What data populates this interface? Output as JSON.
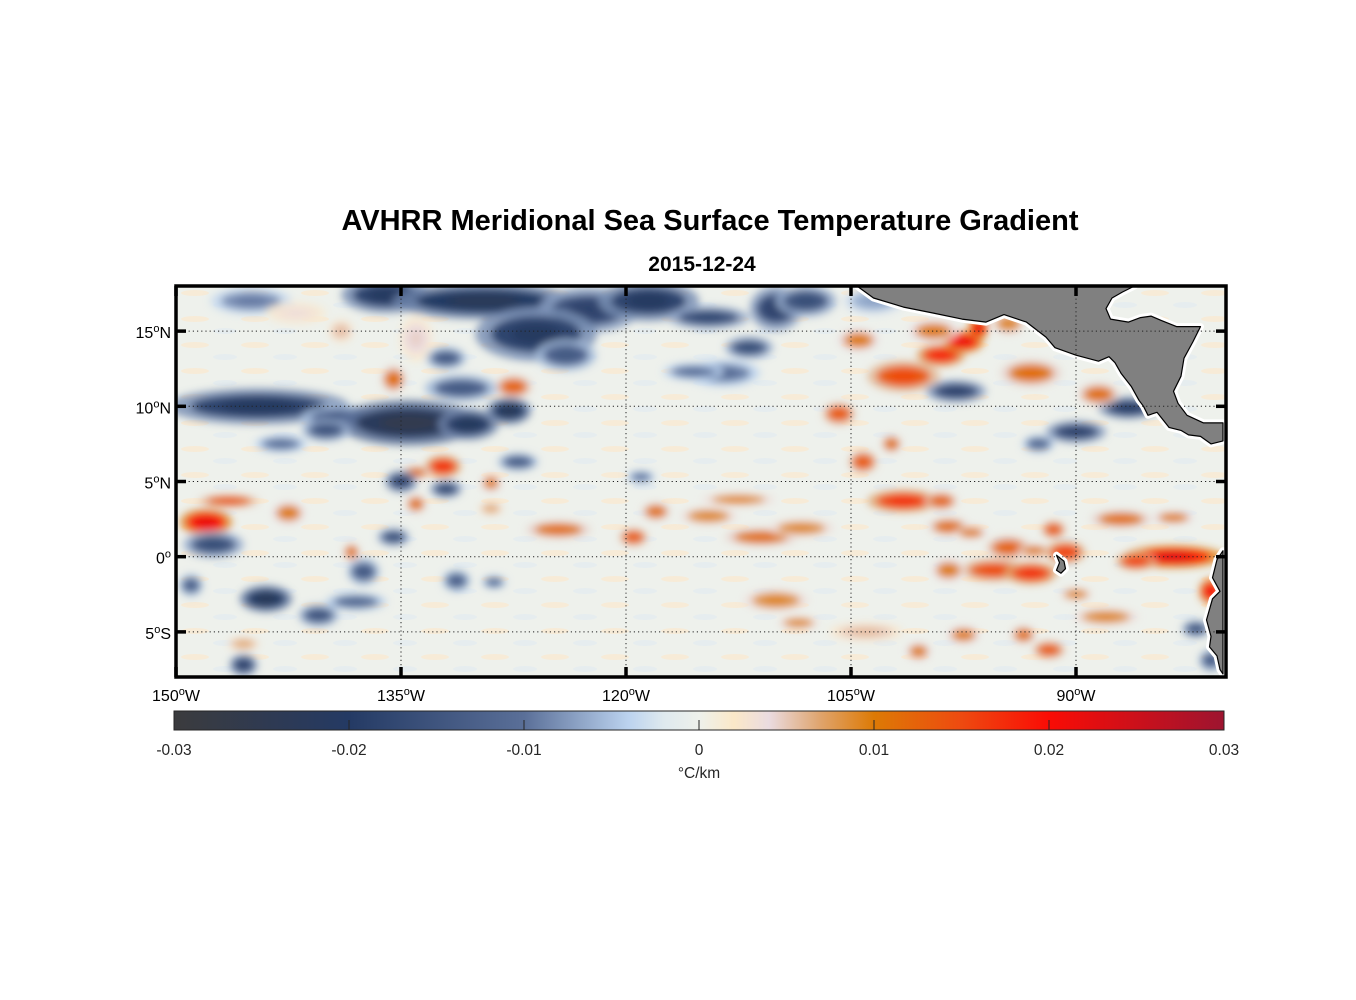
{
  "figure": {
    "title": "AVHRR Meridional Sea Surface Temperature Gradient",
    "subtitle": "2015-12-24"
  },
  "chart_data": {
    "type": "heatmap",
    "title": "AVHRR Meridional Sea Surface Temperature Gradient",
    "subtitle": "2015-12-24",
    "projection": "equirectangular",
    "lon_range": [
      -150,
      -80
    ],
    "lat_range": [
      -8,
      18
    ],
    "grid": true,
    "lon_ticks": [
      {
        "value": -150,
        "label": "150",
        "suffix": "W"
      },
      {
        "value": -135,
        "label": "135",
        "suffix": "W"
      },
      {
        "value": -120,
        "label": "120",
        "suffix": "W"
      },
      {
        "value": -105,
        "label": "105",
        "suffix": "W"
      },
      {
        "value": -90,
        "label": "90",
        "suffix": "W"
      }
    ],
    "lat_ticks": [
      {
        "value": 15,
        "label": "15",
        "suffix": "N"
      },
      {
        "value": 10,
        "label": "10",
        "suffix": "N"
      },
      {
        "value": 5,
        "label": "5",
        "suffix": "N"
      },
      {
        "value": 0,
        "label": "0",
        "suffix": ""
      },
      {
        "value": -5,
        "label": "5",
        "suffix": "S"
      }
    ],
    "colorbar": {
      "range": [
        -0.03,
        0.03
      ],
      "ticks": [
        {
          "value": -0.03,
          "label": "-0.03"
        },
        {
          "value": -0.02,
          "label": "-0.02"
        },
        {
          "value": -0.01,
          "label": "-0.01"
        },
        {
          "value": 0,
          "label": "0"
        },
        {
          "value": 0.01,
          "label": "0.01"
        },
        {
          "value": 0.02,
          "label": "0.02"
        },
        {
          "value": 0.03,
          "label": "0.03"
        }
      ],
      "units": "°C/km",
      "stops": [
        {
          "value": -0.03,
          "color": "#3b3b3d"
        },
        {
          "value": -0.02,
          "color": "#243a64"
        },
        {
          "value": -0.01,
          "color": "#5a6f98"
        },
        {
          "value": -0.004,
          "color": "#bcd3ef"
        },
        {
          "value": -0.002,
          "color": "#dfe9ee"
        },
        {
          "value": 0,
          "color": "#eef1ec"
        },
        {
          "value": 0.002,
          "color": "#fbe8c8"
        },
        {
          "value": 0.004,
          "color": "#eadbe0"
        },
        {
          "value": 0.007,
          "color": "#dfa36a"
        },
        {
          "value": 0.01,
          "color": "#dd7a05"
        },
        {
          "value": 0.015,
          "color": "#ee4a10"
        },
        {
          "value": 0.02,
          "color": "#fa0c05"
        },
        {
          "value": 0.03,
          "color": "#9d1430"
        }
      ]
    },
    "background_value": 0.0005,
    "land_color": "#808080",
    "features": [
      {
        "lon": -145.0,
        "lat": 17.0,
        "rlon": 2.0,
        "rlat": 0.6,
        "value": -0.008
      },
      {
        "lon": -142.0,
        "lat": 16.2,
        "rlon": 1.5,
        "rlat": 0.5,
        "value": 0.003
      },
      {
        "lon": -136.0,
        "lat": 17.4,
        "rlon": 2.2,
        "rlat": 0.8,
        "value": -0.018
      },
      {
        "lon": -129.5,
        "lat": 17.0,
        "rlon": 4.5,
        "rlat": 0.8,
        "value": -0.02
      },
      {
        "lon": -122.5,
        "lat": 16.4,
        "rlon": 2.5,
        "rlat": 1.0,
        "value": -0.016
      },
      {
        "lon": -118.5,
        "lat": 17.0,
        "rlon": 2.5,
        "rlat": 0.9,
        "value": -0.018
      },
      {
        "lon": -114.5,
        "lat": 15.9,
        "rlon": 2.0,
        "rlat": 0.5,
        "value": -0.015
      },
      {
        "lon": -110.0,
        "lat": 16.5,
        "rlon": 1.3,
        "rlat": 1.0,
        "value": -0.016
      },
      {
        "lon": -108.0,
        "lat": 17.0,
        "rlon": 1.5,
        "rlat": 0.7,
        "value": -0.014
      },
      {
        "lon": -126.0,
        "lat": 14.8,
        "rlon": 3.0,
        "rlat": 1.2,
        "value": -0.018
      },
      {
        "lon": -124.0,
        "lat": 13.4,
        "rlon": 1.5,
        "rlat": 0.7,
        "value": -0.012
      },
      {
        "lon": -111.8,
        "lat": 13.9,
        "rlon": 1.2,
        "rlat": 0.5,
        "value": -0.014
      },
      {
        "lon": -113.5,
        "lat": 12.2,
        "rlon": 1.8,
        "rlat": 0.6,
        "value": -0.009
      },
      {
        "lon": -139.0,
        "lat": 15.0,
        "rlon": 0.6,
        "rlat": 0.5,
        "value": 0.005
      },
      {
        "lon": -134.0,
        "lat": 14.5,
        "rlon": 0.8,
        "rlat": 1.0,
        "value": 0.004
      },
      {
        "lon": -135.5,
        "lat": 11.8,
        "rlon": 0.6,
        "rlat": 0.6,
        "value": 0.01
      },
      {
        "lon": -127.5,
        "lat": 11.3,
        "rlon": 0.9,
        "rlat": 0.5,
        "value": 0.011
      },
      {
        "lon": -127.8,
        "lat": 9.7,
        "rlon": 1.1,
        "rlat": 0.6,
        "value": -0.02
      },
      {
        "lon": -131.0,
        "lat": 11.2,
        "rlon": 1.8,
        "rlat": 0.6,
        "value": -0.012
      },
      {
        "lon": -132.0,
        "lat": 13.2,
        "rlon": 1.0,
        "rlat": 0.5,
        "value": -0.012
      },
      {
        "lon": -144.5,
        "lat": 10.0,
        "rlon": 4.5,
        "rlat": 0.8,
        "value": -0.018
      },
      {
        "lon": -139.0,
        "lat": 9.2,
        "rlon": 2.0,
        "rlat": 0.6,
        "value": -0.012
      },
      {
        "lon": -134.5,
        "lat": 8.9,
        "rlon": 3.5,
        "rlat": 1.0,
        "value": -0.022
      },
      {
        "lon": -130.5,
        "lat": 8.8,
        "rlon": 1.5,
        "rlat": 0.7,
        "value": -0.019
      },
      {
        "lon": -140.0,
        "lat": 8.4,
        "rlon": 1.2,
        "rlat": 0.5,
        "value": -0.013
      },
      {
        "lon": -143.0,
        "lat": 7.5,
        "rlon": 1.3,
        "rlat": 0.4,
        "value": -0.009
      },
      {
        "lon": -132.2,
        "lat": 6.0,
        "rlon": 0.9,
        "rlat": 0.5,
        "value": 0.015
      },
      {
        "lon": -134.0,
        "lat": 5.6,
        "rlon": 0.7,
        "rlat": 0.3,
        "value": 0.01
      },
      {
        "lon": -135.0,
        "lat": 5.0,
        "rlon": 0.8,
        "rlat": 0.5,
        "value": -0.016
      },
      {
        "lon": -132.0,
        "lat": 4.5,
        "rlon": 0.8,
        "rlat": 0.4,
        "value": -0.015
      },
      {
        "lon": -129.0,
        "lat": 4.9,
        "rlon": 0.5,
        "rlat": 0.4,
        "value": 0.009
      },
      {
        "lon": -127.2,
        "lat": 6.3,
        "rlon": 1.0,
        "rlat": 0.4,
        "value": -0.012
      },
      {
        "lon": -134.0,
        "lat": 3.5,
        "rlon": 0.5,
        "rlat": 0.4,
        "value": 0.01
      },
      {
        "lon": -129.0,
        "lat": 3.2,
        "rlon": 0.6,
        "rlat": 0.3,
        "value": 0.006
      },
      {
        "lon": -124.5,
        "lat": 1.8,
        "rlon": 1.6,
        "rlat": 0.4,
        "value": 0.01
      },
      {
        "lon": -119.5,
        "lat": 1.3,
        "rlon": 0.7,
        "rlat": 0.4,
        "value": 0.012
      },
      {
        "lon": -118.0,
        "lat": 3.0,
        "rlon": 0.7,
        "rlat": 0.4,
        "value": 0.01
      },
      {
        "lon": -114.5,
        "lat": 2.7,
        "rlon": 1.4,
        "rlat": 0.4,
        "value": 0.008
      },
      {
        "lon": -112.5,
        "lat": 3.8,
        "rlon": 1.8,
        "rlat": 0.3,
        "value": 0.008
      },
      {
        "lon": -111.0,
        "lat": 1.3,
        "rlon": 1.8,
        "rlat": 0.4,
        "value": 0.01
      },
      {
        "lon": -108.3,
        "lat": 1.9,
        "rlon": 1.6,
        "rlat": 0.4,
        "value": 0.008
      },
      {
        "lon": -110.0,
        "lat": -2.9,
        "rlon": 1.6,
        "rlat": 0.5,
        "value": 0.008
      },
      {
        "lon": -108.5,
        "lat": -4.4,
        "rlon": 1.0,
        "rlat": 0.3,
        "value": 0.008
      },
      {
        "lon": -131.3,
        "lat": -1.6,
        "rlon": 0.7,
        "rlat": 0.5,
        "value": -0.011
      },
      {
        "lon": -128.8,
        "lat": -1.7,
        "rlon": 0.6,
        "rlat": 0.3,
        "value": -0.01
      },
      {
        "lon": -148.0,
        "lat": 2.3,
        "rlon": 1.3,
        "rlat": 0.6,
        "value": 0.019
      },
      {
        "lon": -146.5,
        "lat": 3.7,
        "rlon": 1.5,
        "rlat": 0.3,
        "value": 0.012
      },
      {
        "lon": -142.5,
        "lat": 2.9,
        "rlon": 0.8,
        "rlat": 0.5,
        "value": 0.009
      },
      {
        "lon": -138.3,
        "lat": 0.3,
        "rlon": 0.4,
        "rlat": 0.4,
        "value": 0.01
      },
      {
        "lon": -147.5,
        "lat": 0.8,
        "rlon": 1.5,
        "rlat": 0.6,
        "value": -0.014
      },
      {
        "lon": -144.0,
        "lat": -2.8,
        "rlon": 1.3,
        "rlat": 0.6,
        "value": -0.02
      },
      {
        "lon": -140.5,
        "lat": -3.9,
        "rlon": 1.0,
        "rlat": 0.5,
        "value": -0.013
      },
      {
        "lon": -138.0,
        "lat": -3.0,
        "rlon": 1.5,
        "rlat": 0.4,
        "value": -0.01
      },
      {
        "lon": -137.5,
        "lat": -1.0,
        "rlon": 0.8,
        "rlat": 0.6,
        "value": -0.012
      },
      {
        "lon": -135.5,
        "lat": 1.3,
        "rlon": 0.8,
        "rlat": 0.4,
        "value": -0.014
      },
      {
        "lon": -149.0,
        "lat": -1.9,
        "rlon": 0.6,
        "rlat": 0.5,
        "value": -0.011
      },
      {
        "lon": -145.5,
        "lat": -7.2,
        "rlon": 0.7,
        "rlat": 0.5,
        "value": -0.016
      },
      {
        "lon": -145.5,
        "lat": -5.8,
        "rlon": 0.8,
        "rlat": 0.3,
        "value": 0.006
      },
      {
        "lon": -104.5,
        "lat": 14.4,
        "rlon": 1.0,
        "rlat": 0.5,
        "value": 0.009
      },
      {
        "lon": -99.0,
        "lat": 13.4,
        "rlon": 1.2,
        "rlat": 0.5,
        "value": 0.016
      },
      {
        "lon": -97.5,
        "lat": 14.3,
        "rlon": 1.0,
        "rlat": 0.5,
        "value": 0.019
      },
      {
        "lon": -96.5,
        "lat": 15.2,
        "rlon": 0.5,
        "rlat": 0.5,
        "value": 0.02
      },
      {
        "lon": -94.5,
        "lat": 15.5,
        "rlon": 0.8,
        "rlat": 0.5,
        "value": 0.008
      },
      {
        "lon": -101.5,
        "lat": 12.0,
        "rlon": 1.8,
        "rlat": 0.7,
        "value": 0.013
      },
      {
        "lon": -99.5,
        "lat": 15.0,
        "rlon": 1.2,
        "rlat": 0.5,
        "value": 0.009
      },
      {
        "lon": -98.0,
        "lat": 11.0,
        "rlon": 1.5,
        "rlat": 0.5,
        "value": -0.016
      },
      {
        "lon": -93.0,
        "lat": 12.2,
        "rlon": 1.5,
        "rlat": 0.6,
        "value": 0.01
      },
      {
        "lon": -86.5,
        "lat": 9.9,
        "rlon": 1.5,
        "rlat": 0.5,
        "value": -0.017
      },
      {
        "lon": -88.5,
        "lat": 10.8,
        "rlon": 1.0,
        "rlat": 0.5,
        "value": 0.01
      },
      {
        "lon": -90.0,
        "lat": 8.3,
        "rlon": 1.5,
        "rlat": 0.5,
        "value": -0.016
      },
      {
        "lon": -92.5,
        "lat": 7.5,
        "rlon": 0.8,
        "rlat": 0.4,
        "value": -0.01
      },
      {
        "lon": -105.8,
        "lat": 9.5,
        "rlon": 0.8,
        "rlat": 0.5,
        "value": 0.012
      },
      {
        "lon": -104.2,
        "lat": 6.3,
        "rlon": 0.7,
        "rlat": 0.5,
        "value": 0.012
      },
      {
        "lon": -102.3,
        "lat": 7.5,
        "rlon": 0.5,
        "rlat": 0.4,
        "value": 0.01
      },
      {
        "lon": -101.5,
        "lat": 3.7,
        "rlon": 1.8,
        "rlat": 0.5,
        "value": 0.015
      },
      {
        "lon": -99.0,
        "lat": 3.7,
        "rlon": 0.8,
        "rlat": 0.4,
        "value": 0.011
      },
      {
        "lon": -98.5,
        "lat": 2.0,
        "rlon": 1.0,
        "rlat": 0.4,
        "value": 0.01
      },
      {
        "lon": -94.5,
        "lat": 0.6,
        "rlon": 1.1,
        "rlat": 0.5,
        "value": 0.011
      },
      {
        "lon": -92.8,
        "lat": 0.4,
        "rlon": 0.8,
        "rlat": 0.3,
        "value": 0.009
      },
      {
        "lon": -91.5,
        "lat": 1.8,
        "rlon": 0.6,
        "rlat": 0.4,
        "value": 0.012
      },
      {
        "lon": -90.7,
        "lat": 0.3,
        "rlon": 1.0,
        "rlat": 0.5,
        "value": 0.014
      },
      {
        "lon": -95.5,
        "lat": -0.9,
        "rlon": 1.6,
        "rlat": 0.5,
        "value": 0.013
      },
      {
        "lon": -93.0,
        "lat": -1.1,
        "rlon": 1.3,
        "rlat": 0.5,
        "value": 0.015
      },
      {
        "lon": -98.5,
        "lat": -0.9,
        "rlon": 0.8,
        "rlat": 0.5,
        "value": 0.009
      },
      {
        "lon": -97.0,
        "lat": 1.6,
        "rlon": 0.8,
        "rlat": 0.3,
        "value": 0.009
      },
      {
        "lon": -83.5,
        "lat": 0.0,
        "rlon": 2.5,
        "rlat": 0.5,
        "value": 0.02
      },
      {
        "lon": -86.0,
        "lat": -0.3,
        "rlon": 1.0,
        "rlat": 0.4,
        "value": 0.014
      },
      {
        "lon": -81.0,
        "lat": -2.3,
        "rlon": 0.6,
        "rlat": 0.6,
        "value": 0.018
      },
      {
        "lon": -87.0,
        "lat": 2.5,
        "rlon": 1.5,
        "rlat": 0.4,
        "value": 0.01
      },
      {
        "lon": -83.5,
        "lat": 2.6,
        "rlon": 1.0,
        "rlat": 0.3,
        "value": 0.009
      },
      {
        "lon": -88.0,
        "lat": -4.0,
        "rlon": 1.6,
        "rlat": 0.4,
        "value": 0.008
      },
      {
        "lon": -90.0,
        "lat": -2.5,
        "rlon": 0.8,
        "rlat": 0.3,
        "value": 0.008
      },
      {
        "lon": -91.8,
        "lat": -6.2,
        "rlon": 0.8,
        "rlat": 0.4,
        "value": 0.012
      },
      {
        "lon": -93.5,
        "lat": -5.2,
        "rlon": 0.6,
        "rlat": 0.4,
        "value": 0.01
      },
      {
        "lon": -97.5,
        "lat": -5.2,
        "rlon": 0.8,
        "rlat": 0.4,
        "value": 0.009
      },
      {
        "lon": -100.5,
        "lat": -6.3,
        "rlon": 0.6,
        "rlat": 0.4,
        "value": 0.009
      },
      {
        "lon": -82.0,
        "lat": -4.8,
        "rlon": 0.7,
        "rlat": 0.4,
        "value": -0.013
      },
      {
        "lon": -81.0,
        "lat": -6.9,
        "rlon": 0.6,
        "rlat": 0.5,
        "value": -0.012
      },
      {
        "lon": -104.0,
        "lat": -5.0,
        "rlon": 1.8,
        "rlat": 0.4,
        "value": 0.005
      },
      {
        "lon": -119.0,
        "lat": 5.3,
        "rlon": 0.7,
        "rlat": 0.3,
        "value": -0.009
      },
      {
        "lon": -115.5,
        "lat": 12.3,
        "rlon": 1.5,
        "rlat": 0.4,
        "value": -0.009
      },
      {
        "lon": -103.5,
        "lat": 17.0,
        "rlon": 1.5,
        "rlat": 0.6,
        "value": -0.006
      }
    ],
    "land": [
      {
        "name": "central-america-mexico",
        "lon": [
          -104.6,
          -103.5,
          -101.5,
          -99.5,
          -97.6,
          -96.0,
          -94.8,
          -93.3,
          -92.0,
          -91.4,
          -90.0,
          -88.5,
          -87.8,
          -87.4,
          -87.0,
          -86.3,
          -85.8,
          -85.5,
          -85.2,
          -84.6,
          -83.8,
          -83.0,
          -82.5,
          -81.7,
          -81.0,
          -80.2,
          -80.2,
          -81.5,
          -82.6,
          -83.2,
          -83.5,
          -83.0,
          -82.8,
          -82.2,
          -81.7,
          -83.3,
          -84.3,
          -85.0,
          -85.7,
          -86.5,
          -87.7,
          -88.0,
          -87.6,
          -86.9,
          -86.1,
          -86.5,
          -87.1,
          -87.5,
          -87.3,
          -104.6
        ],
        "lat": [
          18.0,
          17.2,
          16.6,
          16.2,
          15.8,
          15.6,
          16.1,
          15.6,
          14.6,
          13.9,
          13.4,
          13.0,
          13.3,
          12.9,
          12.2,
          11.3,
          10.4,
          10.0,
          9.4,
          9.6,
          8.6,
          8.4,
          8.1,
          8.0,
          7.5,
          7.7,
          8.9,
          8.9,
          9.4,
          10.2,
          11.0,
          12.0,
          13.2,
          14.3,
          15.3,
          15.3,
          15.7,
          16.0,
          15.9,
          15.6,
          15.8,
          16.5,
          17.2,
          17.6,
          18.0,
          18.0,
          18.0,
          18.0,
          18.0,
          18.0
        ]
      },
      {
        "name": "south-america",
        "lon": [
          -80.2,
          -80.6,
          -80.9,
          -80.4,
          -80.9,
          -81.3,
          -81.0,
          -81.1,
          -80.6,
          -80.4,
          -80.2
        ],
        "lat": [
          0.4,
          -0.2,
          -1.4,
          -2.3,
          -2.8,
          -4.2,
          -5.3,
          -6.0,
          -6.6,
          -7.5,
          -7.8
        ]
      },
      {
        "name": "galapagos",
        "lon": [
          -91.3,
          -90.8,
          -90.7,
          -91.0,
          -91.3,
          -91.1
        ],
        "lat": [
          0.1,
          -0.3,
          -0.8,
          -1.1,
          -0.9,
          -0.4
        ]
      }
    ]
  }
}
